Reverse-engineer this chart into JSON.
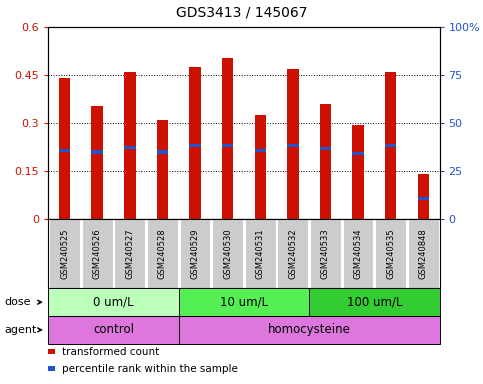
{
  "title": "GDS3413 / 145067",
  "samples": [
    "GSM240525",
    "GSM240526",
    "GSM240527",
    "GSM240528",
    "GSM240529",
    "GSM240530",
    "GSM240531",
    "GSM240532",
    "GSM240533",
    "GSM240534",
    "GSM240535",
    "GSM240848"
  ],
  "transformed_count": [
    0.44,
    0.355,
    0.46,
    0.31,
    0.475,
    0.505,
    0.325,
    0.47,
    0.36,
    0.295,
    0.46,
    0.14
  ],
  "percentile_rank": [
    0.215,
    0.21,
    0.225,
    0.21,
    0.23,
    0.23,
    0.215,
    0.23,
    0.22,
    0.205,
    0.23,
    0.065
  ],
  "bar_color": "#cc1100",
  "blue_color": "#2255cc",
  "ylim_left": [
    0,
    0.6
  ],
  "ylim_right": [
    0,
    100
  ],
  "yticks_left": [
    0,
    0.15,
    0.3,
    0.45,
    0.6
  ],
  "ytick_labels_left": [
    "0",
    "0.15",
    "0.3",
    "0.45",
    "0.6"
  ],
  "yticks_right": [
    0,
    25,
    50,
    75,
    100
  ],
  "ytick_labels_right": [
    "0",
    "25",
    "50",
    "75",
    "100%"
  ],
  "dose_groups": [
    {
      "label": "0 um/L",
      "start": 0,
      "end": 4,
      "color": "#bbffbb"
    },
    {
      "label": "10 um/L",
      "start": 4,
      "end": 8,
      "color": "#55ee55"
    },
    {
      "label": "100 um/L",
      "start": 8,
      "end": 12,
      "color": "#33cc33"
    }
  ],
  "agent_groups": [
    {
      "label": "control",
      "start": 0,
      "end": 4
    },
    {
      "label": "homocysteine",
      "start": 4,
      "end": 12
    }
  ],
  "agent_color": "#dd77dd",
  "legend_items": [
    {
      "label": "transformed count",
      "color": "#cc1100"
    },
    {
      "label": "percentile rank within the sample",
      "color": "#2255cc"
    }
  ],
  "dose_label": "dose",
  "agent_label": "agent",
  "bar_width": 0.35,
  "bg_color": "#ffffff",
  "tick_label_bg": "#cccccc"
}
